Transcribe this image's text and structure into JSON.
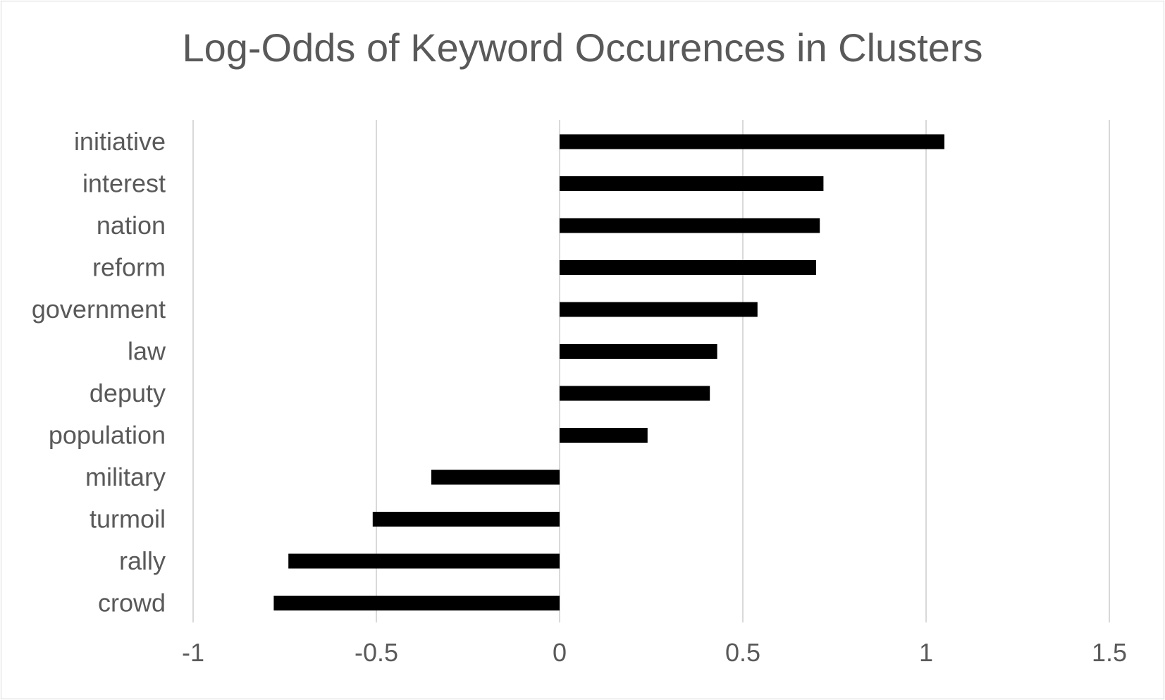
{
  "chart_data": {
    "type": "bar",
    "orientation": "horizontal",
    "title": "Log-Odds of Keyword Occurences in Clusters",
    "xlabel": "",
    "ylabel": "",
    "categories": [
      "initiative",
      "interest",
      "nation",
      "reform",
      "government",
      "law",
      "deputy",
      "population",
      "military",
      "turmoil",
      "rally",
      "crowd"
    ],
    "values": [
      1.05,
      0.72,
      0.71,
      0.7,
      0.54,
      0.43,
      0.41,
      0.24,
      -0.35,
      -0.51,
      -0.74,
      -0.78
    ],
    "xlim": [
      -1,
      1.5
    ],
    "xticks": [
      "-1",
      "-0.5",
      "0",
      "0.5",
      "1",
      "1.5"
    ],
    "xtick_values": [
      -1,
      -0.5,
      0,
      0.5,
      1,
      1.5
    ],
    "grid": "vertical",
    "legend": "none",
    "colors": {
      "bar": "#000000",
      "grid": "#d9d9d9",
      "text": "#595959"
    }
  }
}
